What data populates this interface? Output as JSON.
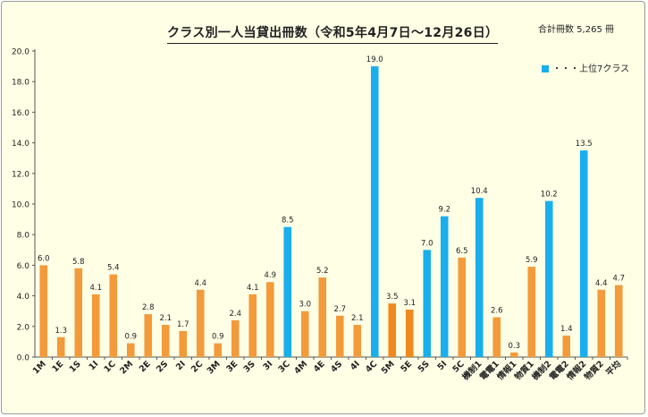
{
  "chart_data": {
    "type": "bar",
    "title": "クラス別一人当貸出冊数（令和5年4月7日～12月26日）",
    "total_label": "合計冊数 5,265 冊",
    "legend": {
      "label": "・・・上位7クラス",
      "color": "#19aeec",
      "placement": "top-right"
    },
    "ylim": [
      0,
      20
    ],
    "yticks": [
      "0.0",
      "2.0",
      "4.0",
      "6.0",
      "8.0",
      "10.0",
      "12.0",
      "14.0",
      "16.0",
      "18.0",
      "20.0"
    ],
    "grid": false,
    "colors": {
      "orange": "#f39a3b",
      "blue": "#19aeec",
      "dark_orange": "#f08a1c"
    },
    "categories": [
      "1M",
      "1E",
      "1S",
      "1I",
      "1C",
      "2M",
      "2E",
      "2S",
      "2I",
      "2C",
      "3M",
      "3E",
      "3S",
      "3I",
      "3C",
      "4M",
      "4E",
      "4S",
      "4I",
      "4C",
      "5M",
      "5E",
      "5S",
      "5I",
      "5C",
      "機制1",
      "電電1",
      "情報1",
      "物質1",
      "機制2",
      "電電2",
      "情報2",
      "物質2",
      "平均"
    ],
    "values": [
      6.0,
      1.3,
      5.8,
      4.1,
      5.4,
      0.9,
      2.8,
      2.1,
      1.7,
      4.4,
      0.9,
      2.4,
      4.1,
      4.9,
      8.5,
      3.0,
      5.2,
      2.7,
      2.1,
      19.0,
      3.5,
      3.1,
      7.0,
      9.2,
      6.5,
      10.4,
      2.6,
      0.3,
      5.9,
      10.2,
      1.4,
      13.5,
      4.4,
      4.7
    ],
    "value_labels": [
      "6.0",
      "1.3",
      "5.8",
      "4.1",
      "5.4",
      "0.9",
      "2.8",
      "2.1",
      "1.7",
      "4.4",
      "0.9",
      "2.4",
      "4.1",
      "4.9",
      "8.5",
      "3.0",
      "5.2",
      "2.7",
      "2.1",
      "19.0",
      "3.5",
      "3.1",
      "7.0",
      "9.2",
      "6.5",
      "10.4",
      "2.6",
      "0.3",
      "5.9",
      "10.2",
      "1.4",
      "13.5",
      "4.4",
      "4.7"
    ],
    "bar_colors": [
      "orange",
      "orange",
      "orange",
      "orange",
      "orange",
      "orange",
      "orange",
      "orange",
      "orange",
      "orange",
      "orange",
      "orange",
      "orange",
      "orange",
      "blue",
      "orange",
      "orange",
      "orange",
      "orange",
      "blue",
      "dark_orange",
      "dark_orange",
      "blue",
      "blue",
      "orange",
      "blue",
      "orange",
      "orange",
      "orange",
      "blue",
      "orange",
      "blue",
      "orange",
      "orange"
    ]
  }
}
